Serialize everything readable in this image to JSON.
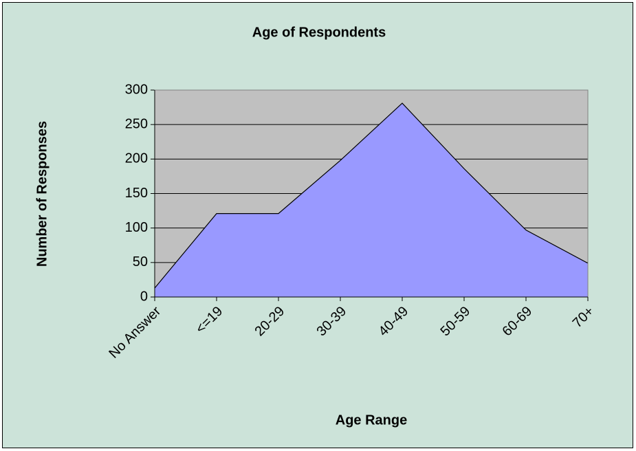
{
  "chart_data": {
    "type": "area",
    "title": "Age of Respondents",
    "x_label": "Age Range",
    "y_label": "Number of Responses",
    "categories": [
      "No Answer",
      "<=19",
      "20-29",
      "30-39",
      "40-49",
      "50-59",
      "60-69",
      "70+"
    ],
    "series": [
      {
        "name": "Responses",
        "color": "#9999ff",
        "values": [
          13,
          121,
          121,
          198,
          281,
          186,
          97,
          49
        ]
      }
    ],
    "ylim": [
      0,
      300
    ],
    "yticks": [
      0,
      50,
      100,
      150,
      200,
      250,
      300
    ],
    "grid": true,
    "plot_background": "#c0c0c0",
    "background": "#cce3d9"
  }
}
